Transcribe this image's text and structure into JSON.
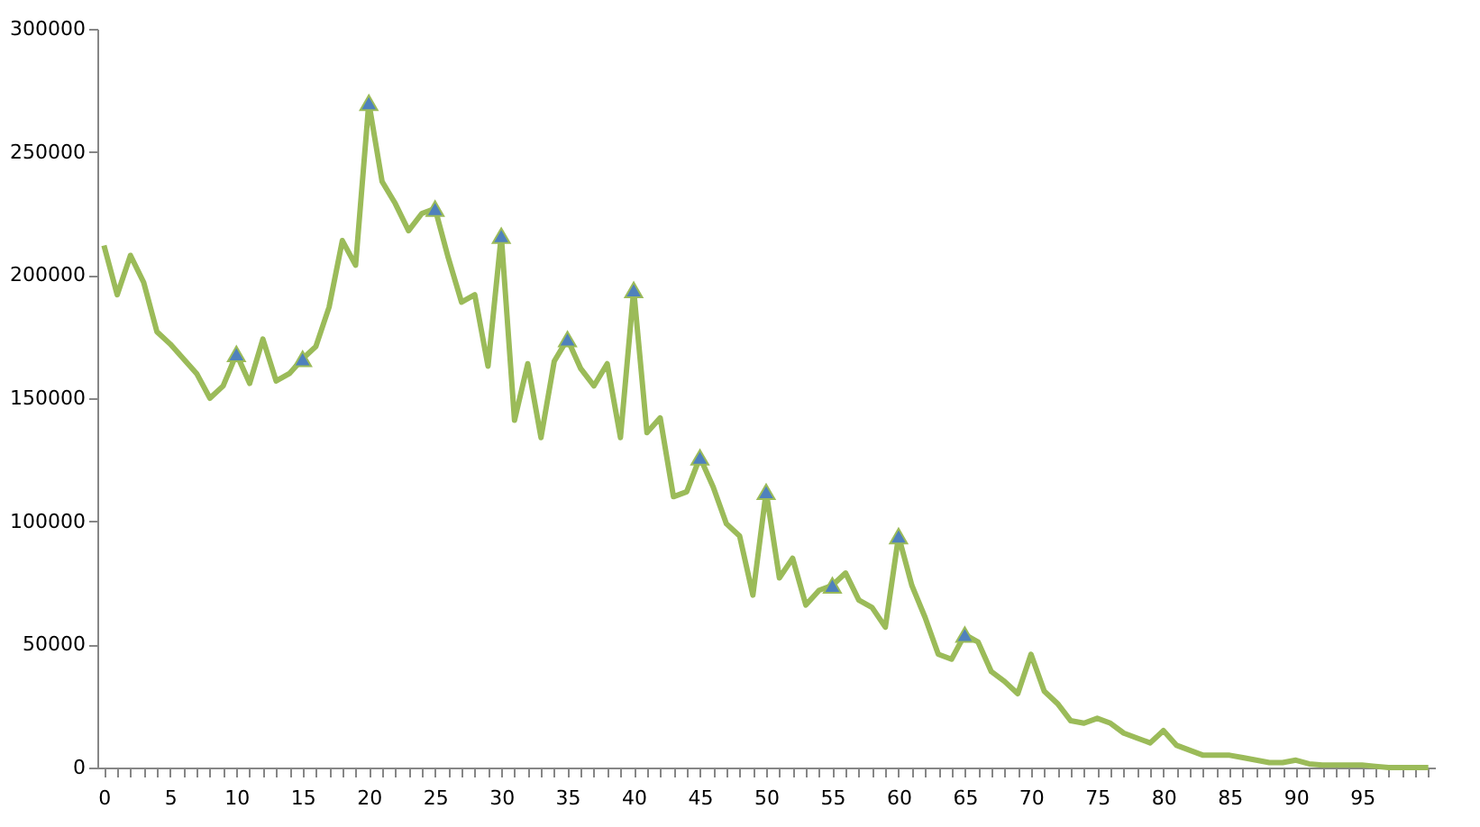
{
  "chart_data": {
    "type": "line",
    "xlim": [
      -0.5,
      100.5
    ],
    "ylim": [
      0,
      300000
    ],
    "yticks": [
      0,
      50000,
      100000,
      150000,
      200000,
      250000,
      300000
    ],
    "xticks": [
      0,
      {
        "value": 1,
        "label": null
      },
      {
        "value": 2,
        "label": null
      },
      {
        "value": 3,
        "label": null
      },
      {
        "value": 4,
        "label": null
      },
      5,
      {
        "value": 6,
        "label": null
      },
      {
        "value": 7,
        "label": null
      },
      {
        "value": 8,
        "label": null
      },
      {
        "value": 9,
        "label": null
      },
      10,
      {
        "value": 11,
        "label": null
      },
      {
        "value": 12,
        "label": null
      },
      {
        "value": 13,
        "label": null
      },
      {
        "value": 14,
        "label": null
      },
      15,
      {
        "value": 16,
        "label": null
      },
      {
        "value": 17,
        "label": null
      },
      {
        "value": 18,
        "label": null
      },
      {
        "value": 19,
        "label": null
      },
      20,
      {
        "value": 21,
        "label": null
      },
      {
        "value": 22,
        "label": null
      },
      {
        "value": 23,
        "label": null
      },
      {
        "value": 24,
        "label": null
      },
      25,
      {
        "value": 26,
        "label": null
      },
      {
        "value": 27,
        "label": null
      },
      {
        "value": 28,
        "label": null
      },
      {
        "value": 29,
        "label": null
      },
      30,
      {
        "value": 31,
        "label": null
      },
      {
        "value": 32,
        "label": null
      },
      {
        "value": 33,
        "label": null
      },
      {
        "value": 34,
        "label": null
      },
      35,
      {
        "value": 36,
        "label": null
      },
      {
        "value": 37,
        "label": null
      },
      {
        "value": 38,
        "label": null
      },
      {
        "value": 39,
        "label": null
      },
      40,
      {
        "value": 41,
        "label": null
      },
      {
        "value": 42,
        "label": null
      },
      {
        "value": 43,
        "label": null
      },
      {
        "value": 44,
        "label": null
      },
      45,
      {
        "value": 46,
        "label": null
      },
      {
        "value": 47,
        "label": null
      },
      {
        "value": 48,
        "label": null
      },
      {
        "value": 49,
        "label": null
      },
      50,
      {
        "value": 51,
        "label": null
      },
      {
        "value": 52,
        "label": null
      },
      {
        "value": 53,
        "label": null
      },
      {
        "value": 54,
        "label": null
      },
      55,
      {
        "value": 56,
        "label": null
      },
      {
        "value": 57,
        "label": null
      },
      {
        "value": 58,
        "label": null
      },
      {
        "value": 59,
        "label": null
      },
      60,
      {
        "value": 61,
        "label": null
      },
      {
        "value": 62,
        "label": null
      },
      {
        "value": 63,
        "label": null
      },
      {
        "value": 64,
        "label": null
      },
      65,
      {
        "value": 66,
        "label": null
      },
      {
        "value": 67,
        "label": null
      },
      {
        "value": 68,
        "label": null
      },
      {
        "value": 69,
        "label": null
      },
      70,
      {
        "value": 71,
        "label": null
      },
      {
        "value": 72,
        "label": null
      },
      {
        "value": 73,
        "label": null
      },
      {
        "value": 74,
        "label": null
      },
      75,
      {
        "value": 76,
        "label": null
      },
      {
        "value": 77,
        "label": null
      },
      {
        "value": 78,
        "label": null
      },
      {
        "value": 79,
        "label": null
      },
      80,
      {
        "value": 81,
        "label": null
      },
      {
        "value": 82,
        "label": null
      },
      {
        "value": 83,
        "label": null
      },
      {
        "value": 84,
        "label": null
      },
      85,
      {
        "value": 86,
        "label": null
      },
      {
        "value": 87,
        "label": null
      },
      {
        "value": 88,
        "label": null
      },
      {
        "value": 89,
        "label": null
      },
      90,
      {
        "value": 91,
        "label": null
      },
      {
        "value": 92,
        "label": null
      },
      {
        "value": 93,
        "label": null
      },
      {
        "value": 94,
        "label": null
      },
      95,
      {
        "value": 96,
        "label": null
      },
      {
        "value": 97,
        "label": null
      },
      {
        "value": 98,
        "label": null
      },
      {
        "value": 99,
        "label": null
      },
      {
        "value": 100,
        "label": null
      }
    ],
    "grid": false,
    "x": [
      0,
      1,
      2,
      3,
      4,
      5,
      6,
      7,
      8,
      9,
      10,
      11,
      12,
      13,
      14,
      15,
      16,
      17,
      18,
      19,
      20,
      21,
      22,
      23,
      24,
      25,
      26,
      27,
      28,
      29,
      30,
      31,
      32,
      33,
      34,
      35,
      36,
      37,
      38,
      39,
      40,
      41,
      42,
      43,
      44,
      45,
      46,
      47,
      48,
      49,
      50,
      51,
      52,
      53,
      54,
      55,
      56,
      57,
      58,
      59,
      60,
      61,
      62,
      63,
      64,
      65,
      66,
      67,
      68,
      69,
      70,
      71,
      72,
      73,
      74,
      75,
      76,
      77,
      78,
      79,
      80,
      81,
      82,
      83,
      84,
      85,
      86,
      87,
      88,
      89,
      90,
      91,
      92,
      93,
      94,
      95,
      96,
      97,
      98,
      99,
      100
    ],
    "series": [
      {
        "color": "#9bbb59",
        "marker": "none",
        "line_style": "solid",
        "values": [
          212000,
          192000,
          208000,
          197000,
          177000,
          172000,
          166000,
          160000,
          150000,
          155000,
          168000,
          156000,
          174000,
          157000,
          160000,
          166000,
          171000,
          187000,
          214000,
          204000,
          270000,
          238000,
          229000,
          218000,
          225000,
          227000,
          207000,
          189000,
          192000,
          163000,
          216000,
          141000,
          164000,
          134000,
          165000,
          174000,
          162000,
          155000,
          164000,
          134000,
          194000,
          136000,
          142000,
          110000,
          112000,
          126000,
          114000,
          99000,
          94000,
          70000,
          112000,
          77000,
          85000,
          66000,
          72000,
          74000,
          79000,
          68000,
          65000,
          57000,
          94000,
          74000,
          61000,
          46000,
          44000,
          54000,
          51000,
          39000,
          35000,
          30000,
          46000,
          31000,
          26000,
          19000,
          18000,
          20000,
          18000,
          14000,
          12000,
          10000,
          15000,
          9000,
          7000,
          5000,
          5000,
          5000,
          4000,
          3000,
          2000,
          2000,
          3000,
          1500,
          1000,
          1000,
          1000,
          1000,
          500,
          0,
          0,
          0,
          0
        ]
      },
      {
        "type": "scatter",
        "color": "#4f81bd",
        "marker": "triangle",
        "x": [
          10,
          15,
          20,
          25,
          30,
          35,
          40,
          45,
          50,
          55,
          60,
          65
        ],
        "values": [
          168000,
          166000,
          270000,
          227000,
          216000,
          174000,
          194000,
          126000,
          112000,
          74000,
          94000,
          54000
        ]
      }
    ]
  }
}
